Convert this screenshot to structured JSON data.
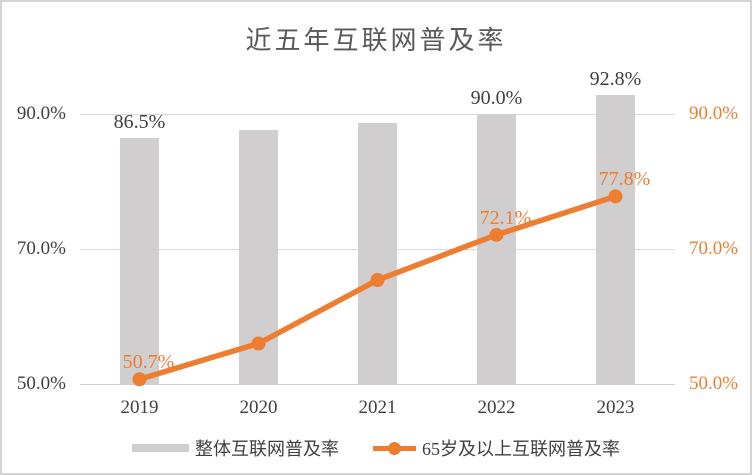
{
  "title": "近五年互联网普及率",
  "colors": {
    "bar": "#d0cece",
    "line": "#ed7d31",
    "gridline": "#d9d9d9",
    "axis_text": "#404040",
    "right_axis_text": "#ed7d31",
    "title_text": "#595959"
  },
  "chart_data": {
    "type": "combo-bar-line",
    "title": "近五年互联网普及率",
    "categories": [
      "2019",
      "2020",
      "2021",
      "2022",
      "2023"
    ],
    "series": [
      {
        "name": "整体互联网普及率",
        "type": "bar",
        "color": "#d0cece",
        "values": [
          86.5,
          87.7,
          88.6,
          90.0,
          92.8
        ],
        "point_labels": [
          "86.5%",
          null,
          null,
          "90.0%",
          "92.8%"
        ]
      },
      {
        "name": "65岁及以上互联网普及率",
        "type": "line",
        "color": "#ed7d31",
        "values": [
          50.7,
          56.0,
          65.4,
          72.1,
          77.8
        ],
        "point_labels": [
          "50.7%",
          null,
          null,
          "72.1%",
          "77.8%"
        ]
      }
    ],
    "y_axis_left": {
      "tick_labels": [
        "90.0%",
        "70.0%",
        "50.0%"
      ],
      "tick_values": [
        90,
        70,
        50
      ]
    },
    "y_axis_right": {
      "tick_labels": [
        "90.0%",
        "70.0%",
        "50.0%"
      ],
      "tick_values": [
        90,
        70,
        50
      ]
    },
    "ylim": [
      50,
      95.5
    ],
    "grid": true,
    "legend_position": "bottom"
  },
  "legend": {
    "items": [
      {
        "label": "整体互联网普及率",
        "marker": "bar-swatch"
      },
      {
        "label": "65岁及以上互联网普及率",
        "marker": "line-dot-swatch"
      }
    ]
  }
}
